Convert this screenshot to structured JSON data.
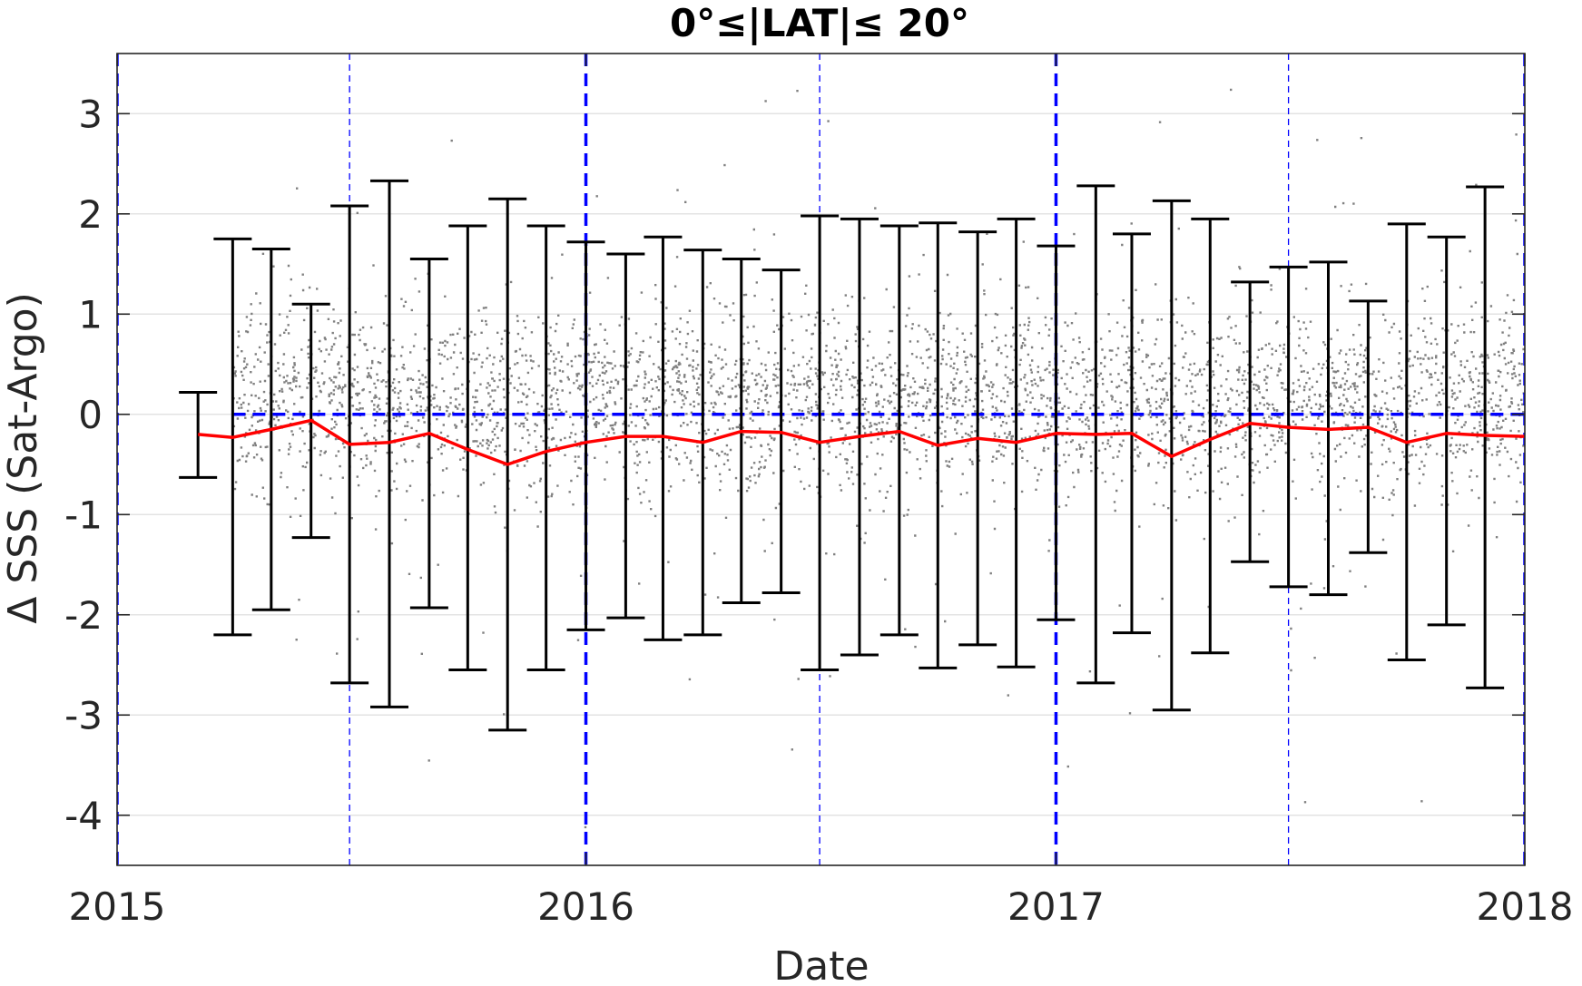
{
  "chart_data": {
    "type": "scatter",
    "title": "0°≤|LAT|≤ 20°",
    "xlabel": "Date",
    "ylabel": "Δ SSS (Sat-Argo)",
    "xlim": [
      "2015-01-01",
      "2018-01-01"
    ],
    "ylim": [
      -4.5,
      3.6
    ],
    "xticks": [
      "2015-01-01",
      "2016-01-01",
      "2017-01-01",
      "2018-01-01"
    ],
    "xticklabels": [
      "2015",
      "2016",
      "2017",
      "2018"
    ],
    "yticks": [
      -4,
      -3,
      -2,
      -1,
      0,
      1,
      2,
      3
    ],
    "yticklabels": [
      "-4",
      "-3",
      "-2",
      "-1",
      "0",
      "1",
      "2",
      "3"
    ],
    "grid": "horizontal",
    "zero_reference_line": 0,
    "year_boundary_lines": [
      "2015-01-01",
      "2016-01-01",
      "2017-01-01",
      "2018-01-01"
    ],
    "midyear_lines": [
      "2015-07-01",
      "2016-07-01",
      "2017-07-01"
    ],
    "scatter_data": {
      "description": "individual satellite minus Argo SSS differences (gray points)",
      "start": "2015-04-01",
      "end": "2018-01-01",
      "typical_range": [
        -0.8,
        1.0
      ]
    },
    "series": [
      {
        "kind": "mean",
        "x": [
          "2015-03-05",
          "2015-04-01",
          "2015-05-01",
          "2015-06-01",
          "2015-07-01",
          "2015-08-01",
          "2015-09-01",
          "2015-10-01",
          "2015-11-01",
          "2015-12-01",
          "2016-01-01",
          "2016-02-01",
          "2016-03-01",
          "2016-04-01",
          "2016-05-01",
          "2016-06-01",
          "2016-07-01",
          "2016-08-01",
          "2016-09-01",
          "2016-10-01",
          "2016-11-01",
          "2016-12-01",
          "2017-01-01",
          "2017-02-01",
          "2017-03-01",
          "2017-04-01",
          "2017-05-01",
          "2017-06-01",
          "2017-07-01",
          "2017-08-01",
          "2017-09-01",
          "2017-10-01",
          "2017-11-01",
          "2017-12-01",
          "2018-01-01"
        ],
        "y": [
          -0.2,
          -0.23,
          -0.15,
          -0.06,
          -0.3,
          -0.28,
          -0.19,
          -0.35,
          -0.5,
          -0.37,
          -0.28,
          -0.22,
          -0.22,
          -0.28,
          -0.17,
          -0.18,
          -0.28,
          -0.22,
          -0.17,
          -0.31,
          -0.24,
          -0.28,
          -0.19,
          -0.2,
          -0.19,
          -0.42,
          -0.25,
          -0.09,
          -0.13,
          -0.15,
          -0.13,
          -0.28,
          -0.19,
          -0.21,
          -0.22
        ]
      }
    ],
    "errorbars": [
      {
        "x": "2015-03-05",
        "low": -0.63,
        "high": 0.22
      },
      {
        "x": "2015-04-01",
        "low": -2.2,
        "high": 1.75
      },
      {
        "x": "2015-05-01",
        "low": -1.95,
        "high": 1.65
      },
      {
        "x": "2015-06-01",
        "low": -1.23,
        "high": 1.1
      },
      {
        "x": "2015-07-01",
        "low": -2.68,
        "high": 2.08
      },
      {
        "x": "2015-08-01",
        "low": -2.92,
        "high": 2.33
      },
      {
        "x": "2015-09-01",
        "low": -1.93,
        "high": 1.55
      },
      {
        "x": "2015-10-01",
        "low": -2.55,
        "high": 1.88
      },
      {
        "x": "2015-11-01",
        "low": -3.15,
        "high": 2.15
      },
      {
        "x": "2015-12-01",
        "low": -2.55,
        "high": 1.88
      },
      {
        "x": "2016-01-01",
        "low": -2.15,
        "high": 1.72
      },
      {
        "x": "2016-02-01",
        "low": -2.03,
        "high": 1.6
      },
      {
        "x": "2016-03-01",
        "low": -2.25,
        "high": 1.77
      },
      {
        "x": "2016-04-01",
        "low": -2.2,
        "high": 1.64
      },
      {
        "x": "2016-05-01",
        "low": -1.88,
        "high": 1.55
      },
      {
        "x": "2016-06-01",
        "low": -1.78,
        "high": 1.44
      },
      {
        "x": "2016-07-01",
        "low": -2.55,
        "high": 1.98
      },
      {
        "x": "2016-08-01",
        "low": -2.4,
        "high": 1.95
      },
      {
        "x": "2016-09-01",
        "low": -2.2,
        "high": 1.88
      },
      {
        "x": "2016-10-01",
        "low": -2.53,
        "high": 1.91
      },
      {
        "x": "2016-11-01",
        "low": -2.3,
        "high": 1.82
      },
      {
        "x": "2016-12-01",
        "low": -2.52,
        "high": 1.95
      },
      {
        "x": "2017-01-01",
        "low": -2.05,
        "high": 1.68
      },
      {
        "x": "2017-02-01",
        "low": -2.68,
        "high": 2.28
      },
      {
        "x": "2017-03-01",
        "low": -2.18,
        "high": 1.8
      },
      {
        "x": "2017-04-01",
        "low": -2.95,
        "high": 2.13
      },
      {
        "x": "2017-05-01",
        "low": -2.38,
        "high": 1.95
      },
      {
        "x": "2017-06-01",
        "low": -1.47,
        "high": 1.32
      },
      {
        "x": "2017-07-01",
        "low": -1.72,
        "high": 1.47
      },
      {
        "x": "2017-08-01",
        "low": -1.8,
        "high": 1.52
      },
      {
        "x": "2017-09-01",
        "low": -1.38,
        "high": 1.13
      },
      {
        "x": "2017-10-01",
        "low": -2.45,
        "high": 1.9
      },
      {
        "x": "2017-11-01",
        "low": -2.1,
        "high": 1.77
      },
      {
        "x": "2017-12-01",
        "low": -2.73,
        "high": 2.27
      }
    ],
    "colors": {
      "scatter": "#808080",
      "mean_line": "#ff0000",
      "errorbar": "#000000",
      "reference_lines": "#0000ff",
      "grid": "#e3e3e3",
      "axes": "#262626"
    }
  }
}
